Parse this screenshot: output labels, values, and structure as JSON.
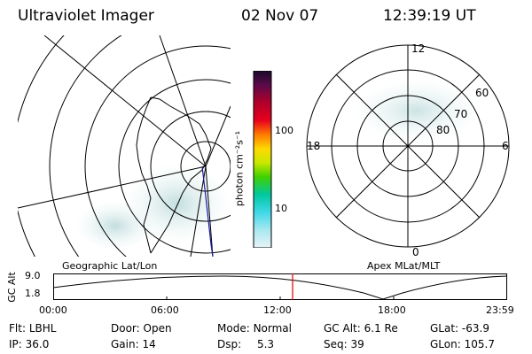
{
  "header": {
    "title": "Ultraviolet Imager",
    "date": "02 Nov 07",
    "time": "12:39:19 UT"
  },
  "colorbar": {
    "unit_label": "photon cm⁻²s⁻¹",
    "ticks": [
      "100",
      "10"
    ]
  },
  "polar_plot": {
    "mlt_labels": {
      "top": "12",
      "left": "18",
      "right": "6",
      "bottom": "0"
    },
    "lat_labels": [
      "60",
      "70",
      "80"
    ]
  },
  "panel_labels": {
    "left": "Geographic Lat/Lon",
    "right": "Apex MLat/MLT"
  },
  "altitude_strip": {
    "ylabel": "GC Alt",
    "yticks": [
      "9.0",
      "1.8"
    ],
    "xticks": [
      "00:00",
      "06:00",
      "12:00",
      "18:00",
      "23:59"
    ],
    "cursor_time": "12:39"
  },
  "info": {
    "row1": [
      {
        "key": "Flt:",
        "value": "LBHL"
      },
      {
        "key": "Door:",
        "value": "Open"
      },
      {
        "key": "Mode:",
        "value": "Normal"
      },
      {
        "key": "GC Alt:",
        "value": "6.1 Re"
      },
      {
        "key": "GLat:",
        "value": "-63.9"
      }
    ],
    "row2": [
      {
        "key": "IP:",
        "value": "36.0"
      },
      {
        "key": "Gain:",
        "value": "14"
      },
      {
        "key": "Dsp:",
        "value": "5.3"
      },
      {
        "key": "Seq:",
        "value": "39"
      },
      {
        "key": "GLon:",
        "value": "105.7"
      }
    ]
  },
  "colors": {
    "cursor": "#e00000",
    "track": "#1a1aa0",
    "auroral_glow": "#cfe4e4"
  }
}
